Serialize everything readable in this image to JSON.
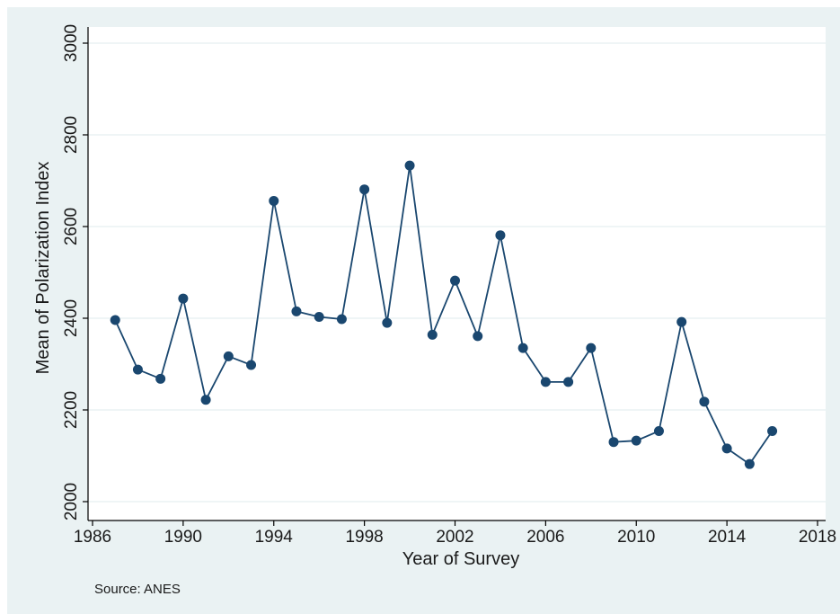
{
  "chart_data": {
    "type": "line",
    "xlabel": "Year of Survey",
    "ylabel": "Mean of Polarization Index",
    "note": "Source: ANES",
    "xlim": [
      1986,
      2018
    ],
    "ylim": [
      2000,
      3000
    ],
    "x_ticks": [
      1986,
      1990,
      1994,
      1998,
      2002,
      2006,
      2010,
      2014,
      2018
    ],
    "y_ticks": [
      2000,
      2200,
      2400,
      2600,
      2800,
      3000
    ],
    "grid": true,
    "series": [
      {
        "x": [
          1987,
          1988,
          1989,
          1990,
          1991,
          1992,
          1993,
          1994,
          1995,
          1996,
          1997,
          1998,
          1999,
          2000,
          2001,
          2002,
          2003,
          2004,
          2005,
          2006,
          2007,
          2008,
          2009,
          2010,
          2011,
          2012,
          2013,
          2014,
          2015,
          2016
        ],
        "values": [
          2396,
          2288,
          2268,
          2443,
          2222,
          2317,
          2298,
          2656,
          2415,
          2403,
          2398,
          2681,
          2390,
          2733,
          2364,
          2482,
          2361,
          2581,
          2335,
          2261,
          2261,
          2335,
          2130,
          2133,
          2154,
          2392,
          2218,
          2116,
          2082,
          2154
        ]
      }
    ],
    "colors": {
      "outer_background": "#eaf2f3",
      "plot_background": "#ffffff",
      "series": "#1a476f",
      "grid": "#eaf2f3",
      "axis": "#000000"
    }
  }
}
